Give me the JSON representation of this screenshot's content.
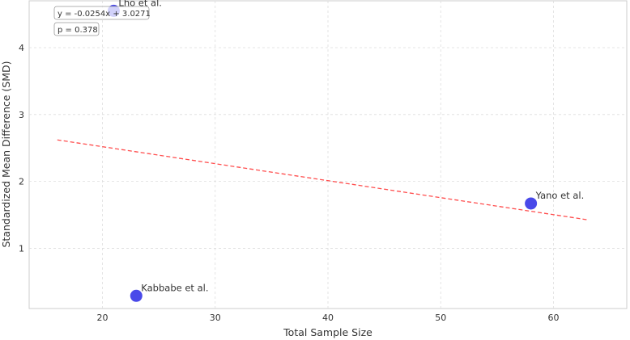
{
  "chart_data": {
    "type": "scatter",
    "title": "",
    "xlabel": "Total Sample Size",
    "ylabel": "Standardized Mean Difference (SMD)",
    "xlim": [
      13.5,
      66.5
    ],
    "ylim": [
      0.1,
      4.7
    ],
    "xticks": [
      20,
      30,
      40,
      50,
      60
    ],
    "yticks": [
      1,
      2,
      3,
      4
    ],
    "grid": true,
    "points": [
      {
        "label": "Lho et al.",
        "x": 21,
        "y": 4.55
      },
      {
        "label": "Yano et al.",
        "x": 58,
        "y": 1.67
      },
      {
        "label": "Kabbabe et al.",
        "x": 23,
        "y": 0.29
      }
    ],
    "point_color": "#3f3fe8",
    "trendline": {
      "slope": -0.0254,
      "intercept": 3.0271,
      "x_range": [
        16,
        63
      ],
      "color": "#ff4d4d"
    },
    "annotations": {
      "equation": "y = -0.0254x + 3.0271",
      "pvalue": "p = 0.378"
    }
  }
}
